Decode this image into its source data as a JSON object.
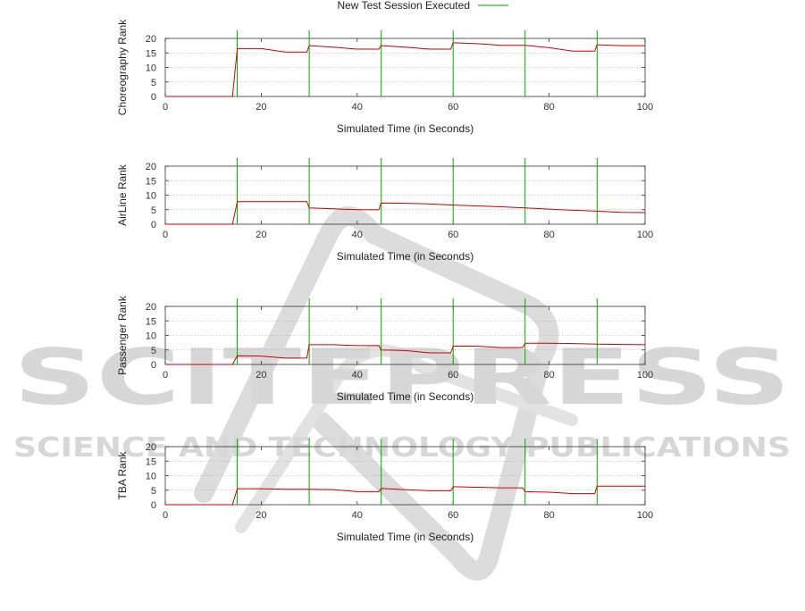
{
  "chart_data": [
    {
      "type": "line",
      "ylabel": "Choreography Rank",
      "xlabel": "Simulated Time (in Seconds)",
      "xlim": [
        0,
        100
      ],
      "ylim": [
        0,
        20
      ],
      "xticks": [
        "0",
        "20",
        "40",
        "60",
        "80",
        "100"
      ],
      "yticks": [
        "0",
        "5",
        "10",
        "15",
        "20"
      ],
      "grid": true,
      "sessions_x": [
        15,
        30,
        45,
        60,
        75,
        90
      ],
      "series": [
        {
          "name": "",
          "x": [
            0,
            14,
            15,
            20,
            25,
            29.5,
            30,
            35,
            40,
            44.5,
            45,
            50,
            55,
            59.5,
            60,
            65,
            70,
            75,
            80,
            85,
            89.5,
            90,
            95,
            100
          ],
          "y": [
            0,
            0,
            16.5,
            16.5,
            15.3,
            15.3,
            17.5,
            17.0,
            16.3,
            16.3,
            17.5,
            17.0,
            16.3,
            16.3,
            18.5,
            18.2,
            17.6,
            17.6,
            16.8,
            15.6,
            15.6,
            17.8,
            17.5,
            17.5
          ]
        }
      ]
    },
    {
      "type": "line",
      "ylabel": "AirLine Rank",
      "xlabel": "Simulated Time (in Seconds)",
      "xlim": [
        0,
        100
      ],
      "ylim": [
        0,
        20
      ],
      "xticks": [
        "0",
        "20",
        "40",
        "60",
        "80",
        "100"
      ],
      "yticks": [
        "0",
        "5",
        "10",
        "15",
        "20"
      ],
      "grid": true,
      "sessions_x": [
        15,
        30,
        45,
        60,
        75,
        90
      ],
      "series": [
        {
          "name": "",
          "x": [
            0,
            14,
            15,
            29.5,
            30,
            35,
            40,
            44.5,
            45,
            50,
            55,
            60,
            65,
            70,
            75,
            80,
            85,
            90,
            95,
            100
          ],
          "y": [
            0,
            0,
            7.8,
            7.8,
            5.6,
            5.3,
            5.0,
            5.0,
            7.3,
            7.2,
            7.0,
            6.6,
            6.3,
            6.0,
            5.6,
            5.2,
            4.8,
            4.5,
            4.1,
            4.0
          ]
        }
      ]
    },
    {
      "type": "line",
      "ylabel": "Passenger Rank",
      "xlabel": "Simulated Time (in Seconds)",
      "xlim": [
        0,
        100
      ],
      "ylim": [
        0,
        20
      ],
      "xticks": [
        "0",
        "20",
        "40",
        "60",
        "80",
        "100"
      ],
      "yticks": [
        "0",
        "5",
        "10",
        "15",
        "20"
      ],
      "grid": true,
      "sessions_x": [
        15,
        30,
        45,
        60,
        75,
        90
      ],
      "series": [
        {
          "name": "",
          "x": [
            0,
            14,
            15,
            20,
            25,
            29.5,
            30,
            35,
            40,
            44.5,
            45,
            50,
            55,
            59.5,
            60,
            65,
            70,
            74.5,
            75,
            80,
            85,
            90,
            95,
            100
          ],
          "y": [
            0,
            0,
            3.0,
            2.9,
            2.2,
            2.2,
            6.8,
            6.8,
            6.5,
            6.5,
            5.0,
            4.8,
            4.0,
            4.0,
            6.3,
            6.3,
            5.8,
            5.8,
            7.3,
            7.3,
            7.2,
            7.0,
            6.9,
            6.8
          ]
        }
      ]
    },
    {
      "type": "line",
      "ylabel": "TBA Rank",
      "xlabel": "Simulated Time (in Seconds)",
      "xlim": [
        0,
        100
      ],
      "ylim": [
        0,
        20
      ],
      "xticks": [
        "0",
        "20",
        "40",
        "60",
        "80",
        "100"
      ],
      "yticks": [
        "0",
        "5",
        "10",
        "15",
        "20"
      ],
      "grid": true,
      "sessions_x": [
        15,
        30,
        45,
        60,
        75,
        90
      ],
      "series": [
        {
          "name": "",
          "x": [
            0,
            14,
            15,
            20,
            25,
            30,
            35,
            40,
            44.5,
            45,
            50,
            55,
            59.5,
            60,
            65,
            70,
            74.5,
            75,
            80,
            85,
            89.5,
            90,
            95,
            100
          ],
          "y": [
            0,
            0,
            5.5,
            5.5,
            5.3,
            5.3,
            5.2,
            4.5,
            4.5,
            5.6,
            5.2,
            4.8,
            4.8,
            6.2,
            6.0,
            5.8,
            5.8,
            4.5,
            4.3,
            3.8,
            3.8,
            6.4,
            6.4,
            6.4
          ]
        }
      ]
    }
  ],
  "legend": {
    "label": "New Test Session Executed",
    "color": "#00aa00"
  },
  "colors": {
    "series": "#cc0000",
    "session": "#00aa00",
    "axis": "#333333",
    "grid": "#999999"
  },
  "watermark": {
    "main": "SCITEPRESS",
    "sub": "SCIENCE AND TECHNOLOGY PUBLICATIONS"
  }
}
